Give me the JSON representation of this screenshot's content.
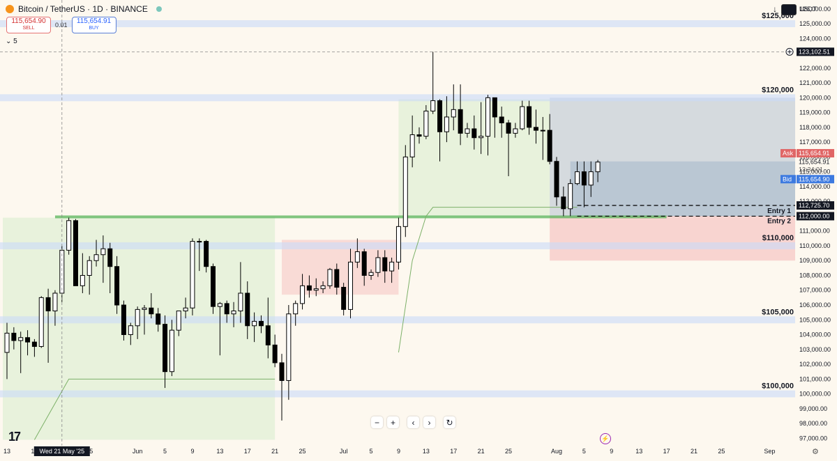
{
  "header": {
    "symbol": "Bitcoin / TetherUS · 1D · BINANCE",
    "sell_price": "115,654.90",
    "sell_label": "SELL",
    "buy_price": "115,654.91",
    "buy_label": "BUY",
    "spread": "0.01",
    "interval_count": "5",
    "currency": "USDT",
    "icons": [
      "bitcoin-logo-icon",
      "market-status-dot-icon",
      "download-arrow-icon",
      "currency-toggle-icon"
    ]
  },
  "bottom": {
    "crosshair_date": "Wed 21 May '25",
    "nav_labels": [
      "−",
      "+",
      "‹",
      "›",
      "↻"
    ],
    "logo_text": "17",
    "icons": [
      "zoom-out-icon",
      "zoom-in-icon",
      "scroll-left-icon",
      "scroll-right-icon",
      "reset-icon",
      "lightning-icon",
      "settings-gear-icon"
    ]
  },
  "chart_data": {
    "type": "candlestick",
    "ylim": [
      96500,
      126600
    ],
    "y_ticks": [
      97000,
      98000,
      99000,
      100000,
      101000,
      102000,
      103000,
      104000,
      105000,
      106000,
      107000,
      108000,
      109000,
      110000,
      111000,
      112000,
      113000,
      114000,
      115000,
      116000,
      117000,
      118000,
      119000,
      120000,
      121000,
      122000,
      123000,
      124000,
      125000,
      126000
    ],
    "y_tick_labels": [
      "97,000.00",
      "98,000.00",
      "99,000.00",
      "100,000.00",
      "101,000.00",
      "102,000.00",
      "103,000.00",
      "104,000.00",
      "105,000.00",
      "106,000.00",
      "107,000.00",
      "108,000.00",
      "109,000.00",
      "110,000.00",
      "111,000.00",
      "112,000.00",
      "113,000.00",
      "114,000.00",
      "115,000.00",
      "116,000.00",
      "117,000.00",
      "118,000.00",
      "119,000.00",
      "120,000.00",
      "121,000.00",
      "122,000.00",
      "123,000.00",
      "124,000.00",
      "125,000.00",
      "126,000.00"
    ],
    "x_ticks": [
      {
        "label": "13",
        "date": "2025-05-13"
      },
      {
        "label": "17",
        "date": "2025-05-17"
      },
      {
        "label": "25",
        "date": "2025-05-25"
      },
      {
        "label": "Jun",
        "date": "2025-06-01"
      },
      {
        "label": "5",
        "date": "2025-06-05"
      },
      {
        "label": "9",
        "date": "2025-06-09"
      },
      {
        "label": "13",
        "date": "2025-06-13"
      },
      {
        "label": "17",
        "date": "2025-06-17"
      },
      {
        "label": "21",
        "date": "2025-06-21"
      },
      {
        "label": "25",
        "date": "2025-06-25"
      },
      {
        "label": "Jul",
        "date": "2025-07-01"
      },
      {
        "label": "5",
        "date": "2025-07-05"
      },
      {
        "label": "9",
        "date": "2025-07-09"
      },
      {
        "label": "13",
        "date": "2025-07-13"
      },
      {
        "label": "17",
        "date": "2025-07-17"
      },
      {
        "label": "21",
        "date": "2025-07-21"
      },
      {
        "label": "25",
        "date": "2025-07-25"
      },
      {
        "label": "Aug",
        "date": "2025-08-01"
      },
      {
        "label": "5",
        "date": "2025-08-05"
      },
      {
        "label": "9",
        "date": "2025-08-09"
      },
      {
        "label": "13",
        "date": "2025-08-13"
      },
      {
        "label": "17",
        "date": "2025-08-17"
      },
      {
        "label": "21",
        "date": "2025-08-21"
      },
      {
        "label": "25",
        "date": "2025-08-25"
      },
      {
        "label": "Sep",
        "date": "2025-09-01"
      }
    ],
    "x_range": [
      "2025-05-13",
      "2025-09-01"
    ],
    "candles": [
      {
        "date": "2025-05-13",
        "open": 102800,
        "high": 104800,
        "low": 101000,
        "close": 104100
      },
      {
        "date": "2025-05-14",
        "open": 104100,
        "high": 104500,
        "low": 103000,
        "close": 103600
      },
      {
        "date": "2025-05-15",
        "open": 103600,
        "high": 104200,
        "low": 101400,
        "close": 103800
      },
      {
        "date": "2025-05-16",
        "open": 103800,
        "high": 104300,
        "low": 102600,
        "close": 103500
      },
      {
        "date": "2025-05-17",
        "open": 103500,
        "high": 103700,
        "low": 102500,
        "close": 103200
      },
      {
        "date": "2025-05-18",
        "open": 103200,
        "high": 106600,
        "low": 103100,
        "close": 106500
      },
      {
        "date": "2025-05-19",
        "open": 106500,
        "high": 107100,
        "low": 102100,
        "close": 105600
      },
      {
        "date": "2025-05-20",
        "open": 105600,
        "high": 107000,
        "low": 104600,
        "close": 106800
      },
      {
        "date": "2025-05-21",
        "open": 106800,
        "high": 110000,
        "low": 106200,
        "close": 109700
      },
      {
        "date": "2025-05-22",
        "open": 109700,
        "high": 111900,
        "low": 109400,
        "close": 111700
      },
      {
        "date": "2025-05-23",
        "open": 111700,
        "high": 111800,
        "low": 107300,
        "close": 107300
      },
      {
        "date": "2025-05-24",
        "open": 107300,
        "high": 109500,
        "low": 106800,
        "close": 108000
      },
      {
        "date": "2025-05-25",
        "open": 108000,
        "high": 109300,
        "low": 106700,
        "close": 109000
      },
      {
        "date": "2025-05-26",
        "open": 109000,
        "high": 110400,
        "low": 108600,
        "close": 109400
      },
      {
        "date": "2025-05-27",
        "open": 109400,
        "high": 110700,
        "low": 107500,
        "close": 109800
      },
      {
        "date": "2025-05-28",
        "open": 109800,
        "high": 110200,
        "low": 106800,
        "close": 108600
      },
      {
        "date": "2025-05-29",
        "open": 108600,
        "high": 109300,
        "low": 105400,
        "close": 106000
      },
      {
        "date": "2025-05-30",
        "open": 106000,
        "high": 106300,
        "low": 103600,
        "close": 104000
      },
      {
        "date": "2025-05-31",
        "open": 104000,
        "high": 104800,
        "low": 103300,
        "close": 104600
      },
      {
        "date": "2025-06-01",
        "open": 104600,
        "high": 105900,
        "low": 103700,
        "close": 105700
      },
      {
        "date": "2025-06-02",
        "open": 105700,
        "high": 106000,
        "low": 104000,
        "close": 105800
      },
      {
        "date": "2025-06-03",
        "open": 105800,
        "high": 106800,
        "low": 105100,
        "close": 105400
      },
      {
        "date": "2025-06-04",
        "open": 105400,
        "high": 105800,
        "low": 104200,
        "close": 104700
      },
      {
        "date": "2025-06-05",
        "open": 104700,
        "high": 105300,
        "low": 100400,
        "close": 101500
      },
      {
        "date": "2025-06-06",
        "open": 101500,
        "high": 105000,
        "low": 101200,
        "close": 104300
      },
      {
        "date": "2025-06-07",
        "open": 104300,
        "high": 105400,
        "low": 103900,
        "close": 105600
      },
      {
        "date": "2025-06-08",
        "open": 105600,
        "high": 106500,
        "low": 105100,
        "close": 105800
      },
      {
        "date": "2025-06-09",
        "open": 105800,
        "high": 110500,
        "low": 105300,
        "close": 110300
      },
      {
        "date": "2025-06-10",
        "open": 110300,
        "high": 110500,
        "low": 108300,
        "close": 110300
      },
      {
        "date": "2025-06-11",
        "open": 110300,
        "high": 110400,
        "low": 108200,
        "close": 108600
      },
      {
        "date": "2025-06-12",
        "open": 108600,
        "high": 108800,
        "low": 105400,
        "close": 105900
      },
      {
        "date": "2025-06-13",
        "open": 105900,
        "high": 106200,
        "low": 102600,
        "close": 106100
      },
      {
        "date": "2025-06-14",
        "open": 106100,
        "high": 106300,
        "low": 104800,
        "close": 105400
      },
      {
        "date": "2025-06-15",
        "open": 105400,
        "high": 106200,
        "low": 104500,
        "close": 105600
      },
      {
        "date": "2025-06-16",
        "open": 105600,
        "high": 108900,
        "low": 104800,
        "close": 106800
      },
      {
        "date": "2025-06-17",
        "open": 106800,
        "high": 107600,
        "low": 103700,
        "close": 104600
      },
      {
        "date": "2025-06-18",
        "open": 104600,
        "high": 105500,
        "low": 103500,
        "close": 104900
      },
      {
        "date": "2025-06-19",
        "open": 104900,
        "high": 105300,
        "low": 104100,
        "close": 104600
      },
      {
        "date": "2025-06-20",
        "open": 104600,
        "high": 106500,
        "low": 102400,
        "close": 103300
      },
      {
        "date": "2025-06-21",
        "open": 103300,
        "high": 104000,
        "low": 101800,
        "close": 102100
      },
      {
        "date": "2025-06-22",
        "open": 102100,
        "high": 102700,
        "low": 98200,
        "close": 100900
      },
      {
        "date": "2025-06-23",
        "open": 100900,
        "high": 106000,
        "low": 99600,
        "close": 105400
      },
      {
        "date": "2025-06-24",
        "open": 105400,
        "high": 106300,
        "low": 104600,
        "close": 106100
      },
      {
        "date": "2025-06-25",
        "open": 106100,
        "high": 108100,
        "low": 105700,
        "close": 107300
      },
      {
        "date": "2025-06-26",
        "open": 107300,
        "high": 108000,
        "low": 106500,
        "close": 107000
      },
      {
        "date": "2025-06-27",
        "open": 107000,
        "high": 107800,
        "low": 106600,
        "close": 107100
      },
      {
        "date": "2025-06-28",
        "open": 107100,
        "high": 107600,
        "low": 106800,
        "close": 107300
      },
      {
        "date": "2025-06-29",
        "open": 107300,
        "high": 108500,
        "low": 107100,
        "close": 108400
      },
      {
        "date": "2025-06-30",
        "open": 108400,
        "high": 108800,
        "low": 106700,
        "close": 107200
      },
      {
        "date": "2025-07-01",
        "open": 107200,
        "high": 107500,
        "low": 105300,
        "close": 105700
      },
      {
        "date": "2025-07-02",
        "open": 105700,
        "high": 109800,
        "low": 105100,
        "close": 108900
      },
      {
        "date": "2025-07-03",
        "open": 108900,
        "high": 110500,
        "low": 108500,
        "close": 109600
      },
      {
        "date": "2025-07-04",
        "open": 109600,
        "high": 109800,
        "low": 107300,
        "close": 108000
      },
      {
        "date": "2025-07-05",
        "open": 108000,
        "high": 108400,
        "low": 107700,
        "close": 108200
      },
      {
        "date": "2025-07-06",
        "open": 108200,
        "high": 109700,
        "low": 107900,
        "close": 109200
      },
      {
        "date": "2025-07-07",
        "open": 109200,
        "high": 109700,
        "low": 107500,
        "close": 108300
      },
      {
        "date": "2025-07-08",
        "open": 108300,
        "high": 109200,
        "low": 107500,
        "close": 108900
      },
      {
        "date": "2025-07-09",
        "open": 108900,
        "high": 111900,
        "low": 108400,
        "close": 111300
      },
      {
        "date": "2025-07-10",
        "open": 111300,
        "high": 116800,
        "low": 110600,
        "close": 116000
      },
      {
        "date": "2025-07-11",
        "open": 116000,
        "high": 118800,
        "low": 115300,
        "close": 117500
      },
      {
        "date": "2025-07-12",
        "open": 117500,
        "high": 118000,
        "low": 116900,
        "close": 117400
      },
      {
        "date": "2025-07-13",
        "open": 117400,
        "high": 119500,
        "low": 117200,
        "close": 119100
      },
      {
        "date": "2025-07-14",
        "open": 119100,
        "high": 123100,
        "low": 118900,
        "close": 119800
      },
      {
        "date": "2025-07-15",
        "open": 119800,
        "high": 119900,
        "low": 115700,
        "close": 117700
      },
      {
        "date": "2025-07-16",
        "open": 117700,
        "high": 120100,
        "low": 117000,
        "close": 118700
      },
      {
        "date": "2025-07-17",
        "open": 118700,
        "high": 120900,
        "low": 117800,
        "close": 119200
      },
      {
        "date": "2025-07-18",
        "open": 119200,
        "high": 120900,
        "low": 116800,
        "close": 117600
      },
      {
        "date": "2025-07-19",
        "open": 117600,
        "high": 118300,
        "low": 117300,
        "close": 117900
      },
      {
        "date": "2025-07-20",
        "open": 117900,
        "high": 118800,
        "low": 116500,
        "close": 117300
      },
      {
        "date": "2025-07-21",
        "open": 117300,
        "high": 119700,
        "low": 116200,
        "close": 117400
      },
      {
        "date": "2025-07-22",
        "open": 117400,
        "high": 120200,
        "low": 116100,
        "close": 120000
      },
      {
        "date": "2025-07-23",
        "open": 120000,
        "high": 120000,
        "low": 117300,
        "close": 118700
      },
      {
        "date": "2025-07-24",
        "open": 118700,
        "high": 119400,
        "low": 117300,
        "close": 118300
      },
      {
        "date": "2025-07-25",
        "open": 118300,
        "high": 118500,
        "low": 114700,
        "close": 117600
      },
      {
        "date": "2025-07-26",
        "open": 117600,
        "high": 118300,
        "low": 117300,
        "close": 117900
      },
      {
        "date": "2025-07-27",
        "open": 117900,
        "high": 119800,
        "low": 117800,
        "close": 119400
      },
      {
        "date": "2025-07-28",
        "open": 119400,
        "high": 119800,
        "low": 117500,
        "close": 118000
      },
      {
        "date": "2025-07-29",
        "open": 118000,
        "high": 119200,
        "low": 116900,
        "close": 117800
      },
      {
        "date": "2025-07-30",
        "open": 117800,
        "high": 118700,
        "low": 115800,
        "close": 117800
      },
      {
        "date": "2025-07-31",
        "open": 117800,
        "high": 118900,
        "low": 115500,
        "close": 115700
      },
      {
        "date": "2025-08-01",
        "open": 115700,
        "high": 116000,
        "low": 112700,
        "close": 113300
      },
      {
        "date": "2025-08-02",
        "open": 113300,
        "high": 114000,
        "low": 112000,
        "close": 112500
      },
      {
        "date": "2025-08-03",
        "open": 112500,
        "high": 114500,
        "low": 112000,
        "close": 114200
      },
      {
        "date": "2025-08-04",
        "open": 114200,
        "high": 115700,
        "low": 114100,
        "close": 115000
      },
      {
        "date": "2025-08-05",
        "open": 115000,
        "high": 115700,
        "low": 112600,
        "close": 114100
      },
      {
        "date": "2025-08-06",
        "open": 114100,
        "high": 115700,
        "low": 113300,
        "close": 115000
      },
      {
        "date": "2025-08-07",
        "open": 115000,
        "high": 115800,
        "low": 114300,
        "close": 115654.91
      }
    ],
    "horizontal_levels": [
      {
        "price": 125000,
        "label": "$125,000"
      },
      {
        "price": 120000,
        "label": "$120,000"
      },
      {
        "price": 110000,
        "label": "$110,000"
      },
      {
        "price": 105000,
        "label": "$105,000"
      },
      {
        "price": 100000,
        "label": "$100,000"
      }
    ],
    "entries": [
      {
        "price": 112725.7,
        "label": "Entry 1"
      },
      {
        "price": 112000.0,
        "label": "Entry 2"
      }
    ],
    "price_labels": {
      "crosshair_price": "123,102.51",
      "ask_label": "Ask",
      "ask_price": "115,654.91",
      "last_price": "115,654.91",
      "countdown": "13:34:01",
      "bid_label": "Bid",
      "bid_price": "115,654.90",
      "entry1_price": "112,725.70",
      "entry2_price": "112,000.00"
    },
    "colors": {
      "up_body": "#ffffff",
      "down_body": "#000000",
      "level_band": "#c9daf8",
      "target_zone": "#8aa3bf",
      "stop_zone": "#f4b7b7",
      "green_zone": "#d4ecc9",
      "green_line": "#4caf50",
      "ask": "#e06666",
      "bid": "#3d7ae0"
    }
  }
}
